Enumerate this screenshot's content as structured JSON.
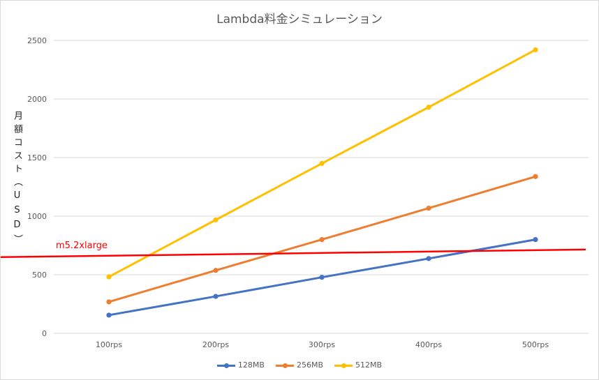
{
  "chart_data": {
    "type": "line",
    "title": "Lambda料金シミュレーション",
    "xlabel": "",
    "ylabel": "月額コスト（USD）",
    "categories": [
      "100rps",
      "200rps",
      "300rps",
      "400rps",
      "500rps"
    ],
    "ylim": [
      0,
      2500
    ],
    "yticks": [
      0,
      500,
      1000,
      1500,
      2000,
      2500
    ],
    "grid": true,
    "legend_position": "bottom",
    "series": [
      {
        "name": "128MB",
        "color": "#4472C4",
        "values": [
          155,
          315,
          478,
          638,
          800
        ]
      },
      {
        "name": "256MB",
        "color": "#ED7D31",
        "values": [
          268,
          537,
          800,
          1068,
          1338
        ]
      },
      {
        "name": "512MB",
        "color": "#FFC000",
        "values": [
          482,
          968,
          1450,
          1930,
          2420
        ]
      }
    ],
    "reference_line": {
      "label": "m5.2xlarge",
      "color": "#FF0000",
      "values_at_edges": [
        650,
        715
      ]
    }
  }
}
